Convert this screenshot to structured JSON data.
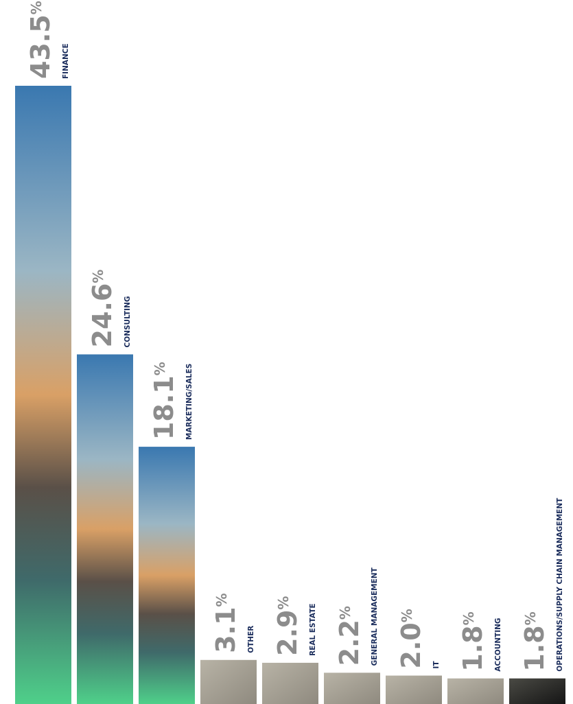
{
  "chart_data": {
    "type": "bar",
    "categories": [
      "FINANCE",
      "CONSULTING",
      "MARKETING/SALES",
      "OTHER",
      "REAL ESTATE",
      "GENERAL MANAGEMENT",
      "IT",
      "ACCOUNTING",
      "OPERATIONS/SUPPLY CHAIN MANAGEMENT"
    ],
    "values": [
      43.5,
      24.6,
      18.1,
      3.1,
      2.9,
      2.2,
      2.0,
      1.8,
      1.8
    ],
    "value_labels": [
      "43.5%",
      "24.6%",
      "18.1%",
      "3.1%",
      "2.9%",
      "2.2%",
      "2.0%",
      "1.8%",
      "1.8%"
    ]
  }
}
